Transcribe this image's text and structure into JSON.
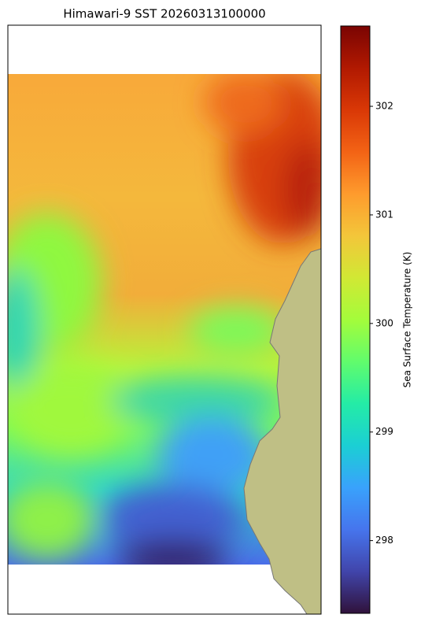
{
  "title": "Himawari-9 SST 20260313100000",
  "colorbar": {
    "label": "Sea Surface Temperature (K)",
    "lim": [
      297.33,
      302.74
    ],
    "ticks": [
      298,
      299,
      300,
      301,
      302
    ],
    "colors": [
      "#30123b",
      "#4145ab",
      "#4675ed",
      "#39a2fc",
      "#1bcfd4",
      "#24eca6",
      "#61fc6c",
      "#a4fc3b",
      "#d1e834",
      "#f3c63a",
      "#fe9b2d",
      "#f36315",
      "#d93806",
      "#b11901",
      "#7a0402"
    ]
  }
}
